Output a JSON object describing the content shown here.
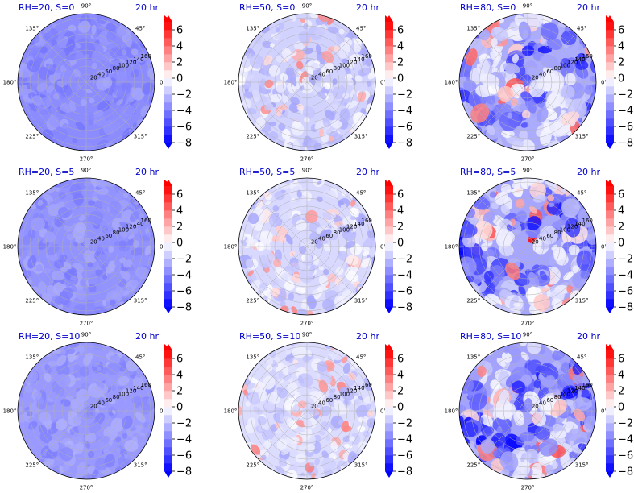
{
  "figure": {
    "time_label": "20 hr"
  },
  "chart_data": {
    "type": "heatmap",
    "projection": "polar",
    "angle_ticks": [
      "90°",
      "45°",
      "0°",
      "315°",
      "270°",
      "225°",
      "180°",
      "135°"
    ],
    "radial_ticks": [
      "20",
      "40",
      "60",
      "80",
      "100",
      "120",
      "140",
      "160"
    ],
    "colorbar": {
      "ticks": [
        "6",
        "4",
        "2",
        "0",
        "−2",
        "−4",
        "−6",
        "−8"
      ],
      "range": [
        -8,
        7
      ],
      "cmap": "bwr",
      "extend": "both"
    },
    "panels": [
      {
        "title": "RH=20, S=0",
        "time": "20 hr",
        "rh": 20,
        "s": 0,
        "mean": -3.6,
        "spread": 0.8,
        "positive_fraction": 0.0
      },
      {
        "title": "RH=50, S=0",
        "time": "20 hr",
        "rh": 50,
        "s": 0,
        "mean": -1.4,
        "spread": 1.6,
        "positive_fraction": 0.12
      },
      {
        "title": "RH=80, S=0",
        "time": "20 hr",
        "rh": 80,
        "s": 0,
        "mean": -2.6,
        "spread": 2.8,
        "positive_fraction": 0.08
      },
      {
        "title": "RH=20, S=5",
        "time": "20 hr",
        "rh": 20,
        "s": 5,
        "mean": -3.4,
        "spread": 0.8,
        "positive_fraction": 0.0
      },
      {
        "title": "RH=50, S=5",
        "time": "20 hr",
        "rh": 50,
        "s": 5,
        "mean": -1.2,
        "spread": 1.8,
        "positive_fraction": 0.15
      },
      {
        "title": "RH=80, S=5",
        "time": "20 hr",
        "rh": 80,
        "s": 5,
        "mean": -2.8,
        "spread": 3.0,
        "positive_fraction": 0.1
      },
      {
        "title": "RH=20, S=10",
        "time": "20 hr",
        "rh": 20,
        "s": 10,
        "mean": -3.2,
        "spread": 0.8,
        "positive_fraction": 0.0
      },
      {
        "title": "RH=50, S=10",
        "time": "20 hr",
        "rh": 50,
        "s": 10,
        "mean": -1.1,
        "spread": 1.6,
        "positive_fraction": 0.14
      },
      {
        "title": "RH=80, S=10",
        "time": "20 hr",
        "rh": 80,
        "s": 10,
        "mean": -2.9,
        "spread": 3.0,
        "positive_fraction": 0.08
      }
    ]
  }
}
